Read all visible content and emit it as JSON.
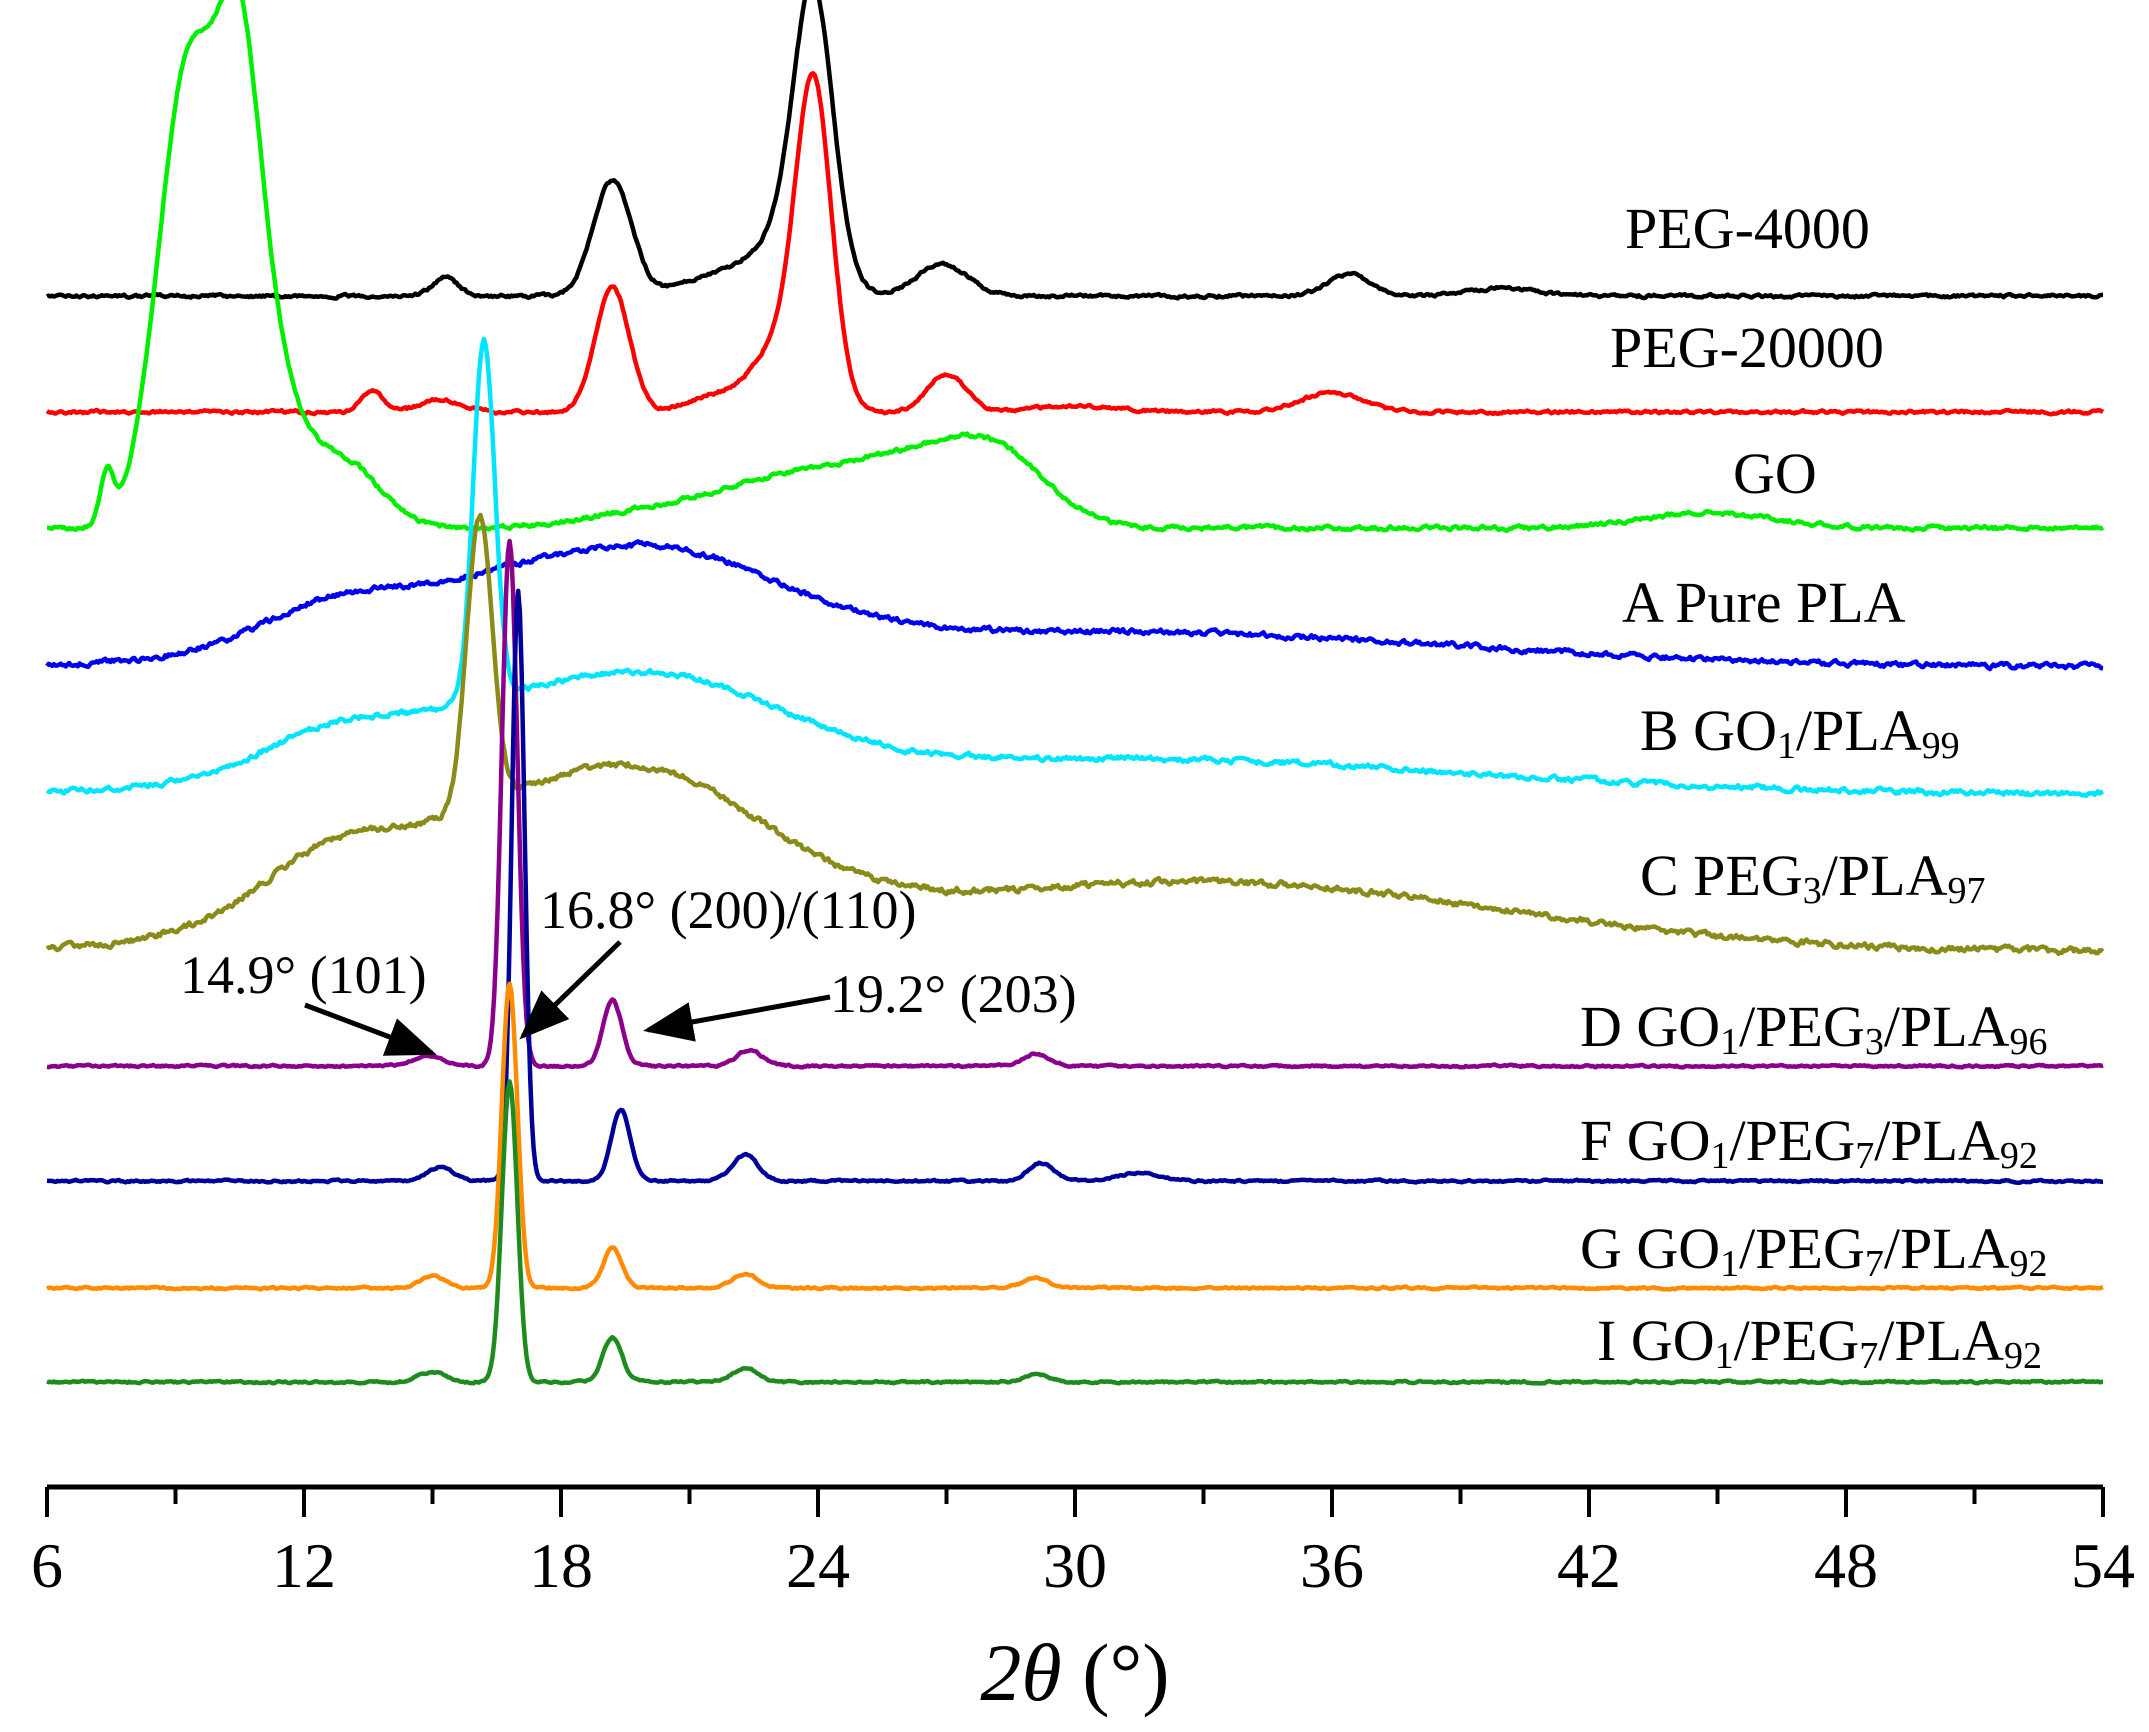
{
  "chart_data": {
    "type": "line",
    "title": "",
    "xlabel": "2θ (°)",
    "xlabel_parts": {
      "italic": "2θ",
      "rest": " (°)"
    },
    "ylabel": "",
    "xlim": [
      6,
      54
    ],
    "x_ticks": [
      6,
      12,
      18,
      24,
      30,
      36,
      42,
      48,
      54
    ],
    "x_minor_step": 3,
    "y_ticks": [],
    "grid": false,
    "legend": "labels beside each curve (right)",
    "offset_stacked": true,
    "series": [
      {
        "label_parts": [
          {
            "t": "PEG-4000"
          }
        ],
        "color": "#000000",
        "baseline": 0,
        "noise": 3,
        "peaks": [
          {
            "x": 15.3,
            "h": 18,
            "w": 0.3
          },
          {
            "x": 19.2,
            "h": 115,
            "w": 0.45
          },
          {
            "x": 21.5,
            "h": 18,
            "w": 0.8
          },
          {
            "x": 23.3,
            "h": 60,
            "w": 0.8
          },
          {
            "x": 23.9,
            "h": 268,
            "w": 0.45
          },
          {
            "x": 26.9,
            "h": 32,
            "w": 0.6
          },
          {
            "x": 36.4,
            "h": 22,
            "w": 0.5
          },
          {
            "x": 40.0,
            "h": 8,
            "w": 0.8
          }
        ]
      },
      {
        "label_parts": [
          {
            "t": "PEG-20000"
          }
        ],
        "color": "#ff0000",
        "baseline": 0,
        "noise": 3,
        "peaks": [
          {
            "x": 13.6,
            "h": 22,
            "w": 0.25
          },
          {
            "x": 15.2,
            "h": 12,
            "w": 0.5
          },
          {
            "x": 19.2,
            "h": 124,
            "w": 0.4
          },
          {
            "x": 21.5,
            "h": 15,
            "w": 0.6
          },
          {
            "x": 23.0,
            "h": 60,
            "w": 0.6
          },
          {
            "x": 23.9,
            "h": 318,
            "w": 0.42
          },
          {
            "x": 27.0,
            "h": 38,
            "w": 0.45
          },
          {
            "x": 36.0,
            "h": 20,
            "w": 0.7
          },
          {
            "x": 30.0,
            "h": 6,
            "w": 1.0
          }
        ]
      },
      {
        "label_parts": [
          {
            "t": "GO"
          }
        ],
        "color": "#00ee00",
        "baseline": 0,
        "noise": 4,
        "peaks": [
          {
            "x": 7.4,
            "h": 50,
            "w": 0.15
          },
          {
            "x": 9.3,
            "h": 460,
            "w": 0.7
          },
          {
            "x": 10.5,
            "h": 380,
            "w": 0.5
          },
          {
            "x": 11.3,
            "h": 120,
            "w": 0.6
          },
          {
            "x": 12.8,
            "h": 70,
            "w": 0.9
          },
          {
            "x": 22.8,
            "h": 35,
            "w": 1.5
          },
          {
            "x": 26.0,
            "h": 65,
            "w": 1.8
          },
          {
            "x": 28.2,
            "h": 55,
            "w": 1.2
          },
          {
            "x": 44.8,
            "h": 15,
            "w": 1.5
          },
          {
            "x": 20.0,
            "h": 15,
            "w": 1.5
          }
        ]
      },
      {
        "label_parts": [
          {
            "t": "A Pure PLA"
          }
        ],
        "color": "#0000ee",
        "baseline": 0,
        "noise": 5,
        "peaks": [
          {
            "x": 17.5,
            "h": 85,
            "w": 4.2
          },
          {
            "x": 21.0,
            "h": 40,
            "w": 2.5
          },
          {
            "x": 31.0,
            "h": 35,
            "w": 8.0
          },
          {
            "x": 12.5,
            "h": 25,
            "w": 1.5
          }
        ]
      },
      {
        "label_parts": [
          {
            "t": "B GO"
          },
          {
            "t": "1",
            "sub": true
          },
          {
            "t": "/PLA"
          },
          {
            "t": "99",
            "sub": true
          }
        ],
        "color": "#00e5ff",
        "baseline": 0,
        "noise": 5,
        "peaks": [
          {
            "x": 16.2,
            "h": 360,
            "w": 0.25
          },
          {
            "x": 17.5,
            "h": 85,
            "w": 4.2
          },
          {
            "x": 21.0,
            "h": 40,
            "w": 2.5
          },
          {
            "x": 31.0,
            "h": 35,
            "w": 8.0
          },
          {
            "x": 12.5,
            "h": 25,
            "w": 1.5
          }
        ]
      },
      {
        "label_parts": [
          {
            "t": "C PEG"
          },
          {
            "t": "3",
            "sub": true
          },
          {
            "t": "/PLA"
          },
          {
            "t": "97",
            "sub": true
          }
        ],
        "color": "#8b8b1a",
        "baseline": 0,
        "noise": 6,
        "peaks": [
          {
            "x": 16.1,
            "h": 290,
            "w": 0.3
          },
          {
            "x": 17.5,
            "h": 135,
            "w": 4.3
          },
          {
            "x": 20.5,
            "h": 60,
            "w": 2.5
          },
          {
            "x": 33.0,
            "h": 70,
            "w": 7.0
          },
          {
            "x": 12.5,
            "h": 40,
            "w": 1.5
          }
        ]
      },
      {
        "label_parts": [
          {
            "t": "D GO"
          },
          {
            "t": "1",
            "sub": true
          },
          {
            "t": "/PEG"
          },
          {
            "t": "3",
            "sub": true
          },
          {
            "t": "/PLA"
          },
          {
            "t": "96",
            "sub": true
          }
        ],
        "color": "#8b008b",
        "baseline": 0,
        "noise": 2,
        "peaks": [
          {
            "x": 14.9,
            "h": 10,
            "w": 0.35
          },
          {
            "x": 16.8,
            "h": 525,
            "w": 0.18
          },
          {
            "x": 19.2,
            "h": 66,
            "w": 0.22
          },
          {
            "x": 22.4,
            "h": 16,
            "w": 0.3
          },
          {
            "x": 29.1,
            "h": 12,
            "w": 0.3
          }
        ]
      },
      {
        "label_parts": [
          {
            "t": "F GO"
          },
          {
            "t": "1",
            "sub": true
          },
          {
            "t": "/PEG"
          },
          {
            "t": "7",
            "sub": true
          },
          {
            "t": "/PLA"
          },
          {
            "t": "92",
            "sub": true
          }
        ],
        "color": "#000099",
        "baseline": 0,
        "noise": 2,
        "peaks": [
          {
            "x": 15.2,
            "h": 14,
            "w": 0.3
          },
          {
            "x": 17.0,
            "h": 590,
            "w": 0.15
          },
          {
            "x": 19.4,
            "h": 72,
            "w": 0.22
          },
          {
            "x": 22.3,
            "h": 26,
            "w": 0.3
          },
          {
            "x": 29.2,
            "h": 18,
            "w": 0.3
          },
          {
            "x": 31.5,
            "h": 8,
            "w": 0.5
          }
        ]
      },
      {
        "label_parts": [
          {
            "t": "G GO"
          },
          {
            "t": "1",
            "sub": true
          },
          {
            "t": "/PEG"
          },
          {
            "t": "7",
            "sub": true
          },
          {
            "t": "/PLA"
          },
          {
            "t": "92",
            "sub": true
          }
        ],
        "color": "#ff8c00",
        "baseline": 0,
        "noise": 2,
        "peaks": [
          {
            "x": 15.0,
            "h": 12,
            "w": 0.3
          },
          {
            "x": 16.8,
            "h": 305,
            "w": 0.18
          },
          {
            "x": 19.2,
            "h": 40,
            "w": 0.22
          },
          {
            "x": 22.3,
            "h": 14,
            "w": 0.3
          },
          {
            "x": 29.1,
            "h": 10,
            "w": 0.3
          }
        ]
      },
      {
        "label_parts": [
          {
            "t": "I GO"
          },
          {
            "t": "1",
            "sub": true
          },
          {
            "t": "/PEG"
          },
          {
            "t": "7",
            "sub": true
          },
          {
            "t": "/PLA"
          },
          {
            "t": "92",
            "sub": true
          }
        ],
        "color": "#1e8b1e",
        "baseline": 0,
        "noise": 2,
        "peaks": [
          {
            "x": 15.0,
            "h": 10,
            "w": 0.3
          },
          {
            "x": 16.8,
            "h": 300,
            "w": 0.18
          },
          {
            "x": 19.2,
            "h": 45,
            "w": 0.22
          },
          {
            "x": 22.3,
            "h": 14,
            "w": 0.3
          },
          {
            "x": 29.1,
            "h": 8,
            "w": 0.3
          }
        ]
      }
    ],
    "annotations": [
      {
        "text": "14.9° (101)",
        "x": 14.9
      },
      {
        "text": "16.8° (200)/(110)",
        "x": 16.8
      },
      {
        "text": "19.2° (203)",
        "x": 19.2
      }
    ]
  }
}
